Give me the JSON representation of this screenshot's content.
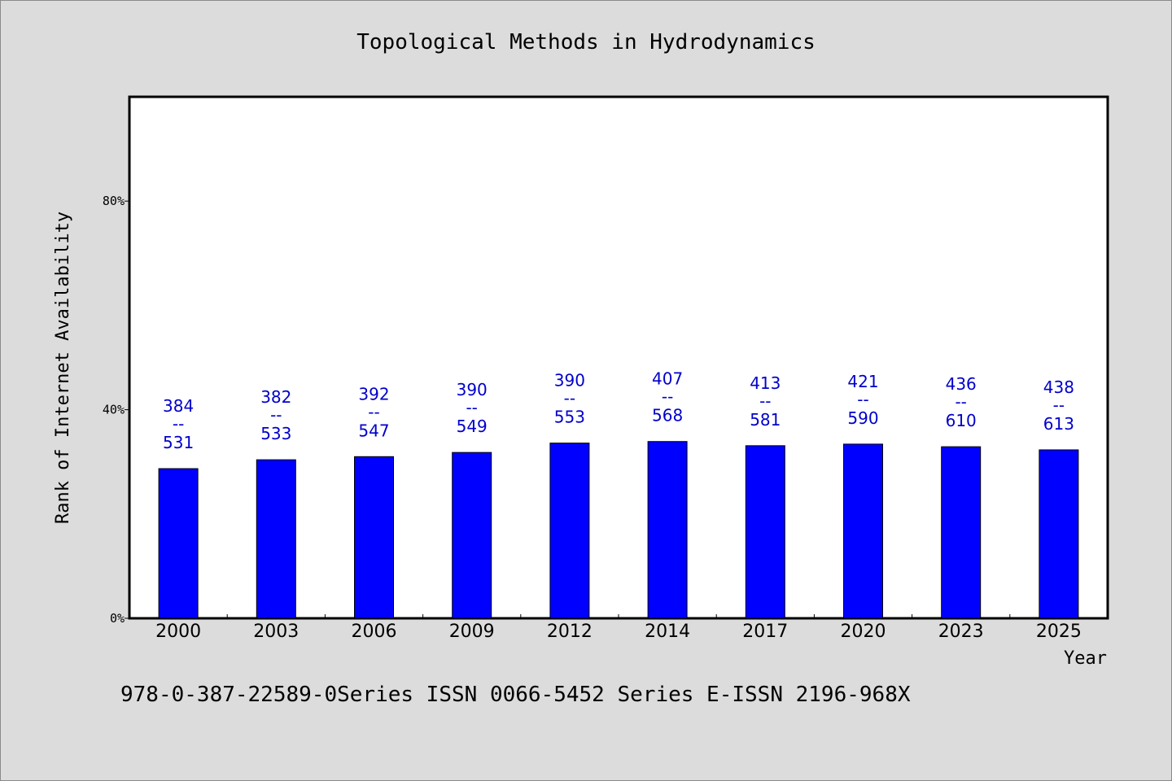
{
  "chart_data": {
    "type": "bar",
    "title": "Topological Methods in Hydrodynamics",
    "xlabel": "Year",
    "ylabel": "Rank of Internet Availability",
    "ylim": [
      0,
      100
    ],
    "yticks": [
      0,
      40,
      80
    ],
    "ytick_labels": [
      "0%",
      "40%",
      "80%"
    ],
    "categories": [
      "2000",
      "2003",
      "2006",
      "2009",
      "2012",
      "2014",
      "2017",
      "2020",
      "2023",
      "2025"
    ],
    "values": [
      28.7,
      30.4,
      31.0,
      31.8,
      33.6,
      33.9,
      33.1,
      33.4,
      32.9,
      32.3
    ],
    "data_labels": [
      {
        "top": "384",
        "sep": "--",
        "bottom": "531"
      },
      {
        "top": "382",
        "sep": "--",
        "bottom": "533"
      },
      {
        "top": "392",
        "sep": "--",
        "bottom": "547"
      },
      {
        "top": "390",
        "sep": "--",
        "bottom": "549"
      },
      {
        "top": "390",
        "sep": "--",
        "bottom": "553"
      },
      {
        "top": "407",
        "sep": "--",
        "bottom": "568"
      },
      {
        "top": "413",
        "sep": "--",
        "bottom": "581"
      },
      {
        "top": "421",
        "sep": "--",
        "bottom": "590"
      },
      {
        "top": "436",
        "sep": "--",
        "bottom": "610"
      },
      {
        "top": "438",
        "sep": "--",
        "bottom": "613"
      }
    ],
    "grid": false,
    "legend": "none",
    "bar_color": "#0000ff",
    "label_color": "#0000cc"
  },
  "footer": {
    "text": "978-0-387-22589-0Series ISSN 0066-5452 Series E-ISSN 2196-968X"
  }
}
